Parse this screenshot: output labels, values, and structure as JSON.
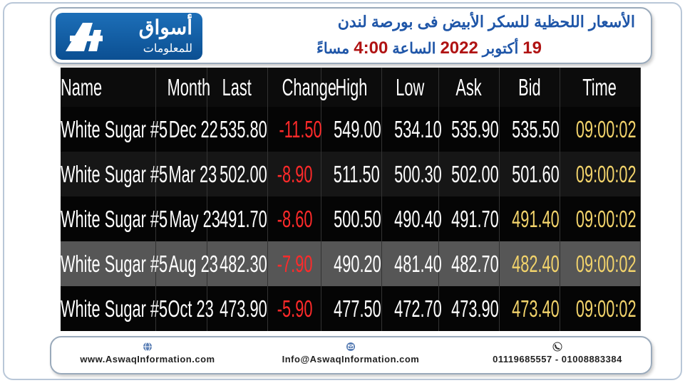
{
  "header": {
    "logo": {
      "title": "أسواق",
      "subtitle": "للمعلومات"
    },
    "title": "الأسعار اللحظية للسكر الأبيض فى بورصة لندن",
    "date_line": [
      {
        "text": "19",
        "kind": "num"
      },
      {
        "text": "أكتوبر",
        "kind": "word"
      },
      {
        "text": "2022",
        "kind": "num"
      },
      {
        "text": "الساعة",
        "kind": "word"
      },
      {
        "text": "4:00",
        "kind": "num"
      },
      {
        "text": "مساءً",
        "kind": "word"
      }
    ]
  },
  "table": {
    "columns": [
      "Name",
      "Month",
      "Last",
      "Change",
      "High",
      "Low",
      "Ask",
      "Bid",
      "Time"
    ],
    "rows": [
      [
        "White Sugar #5",
        "Dec 22",
        "535.80",
        "-11.50",
        "549.00",
        "534.10",
        "535.90",
        "535.50",
        "09:00:02"
      ],
      [
        "White Sugar #5",
        "Mar 23",
        "502.00",
        "-8.90",
        "511.50",
        "500.30",
        "502.00",
        "501.60",
        "09:00:02"
      ],
      [
        "White Sugar #5",
        "May 23",
        "491.70",
        "-8.60",
        "500.50",
        "490.40",
        "491.70",
        "491.40",
        "09:00:02"
      ],
      [
        "White Sugar #5",
        "Aug 23",
        "482.30",
        "-7.90",
        "490.20",
        "481.40",
        "482.70",
        "482.40",
        "09:00:02"
      ],
      [
        "White Sugar #5",
        "Oct 23",
        "473.90",
        "-5.90",
        "477.50",
        "472.70",
        "473.90",
        "473.40",
        "09:00:02"
      ]
    ]
  },
  "footer": {
    "website": "www.AswaqInformation.com",
    "email": "Info@AswaqInformation.com",
    "phone": "01119685557 - 01008883384"
  }
}
